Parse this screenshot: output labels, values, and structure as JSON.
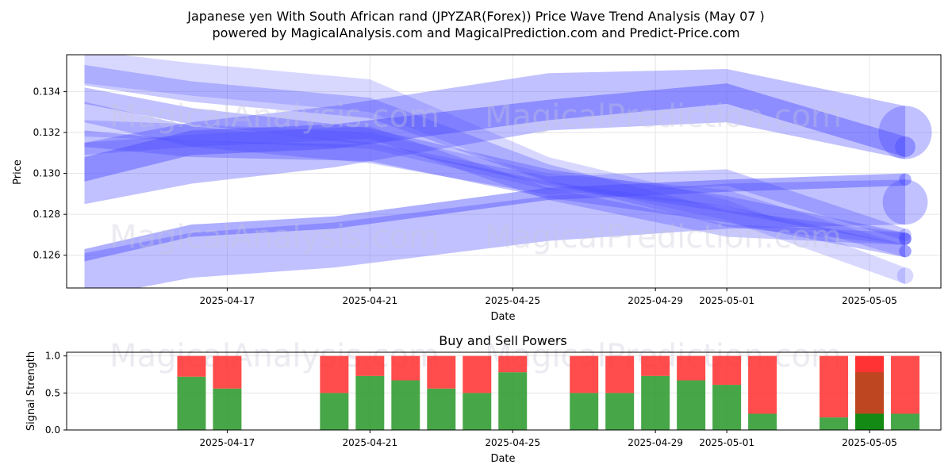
{
  "title_line1": "Japanese yen With South African rand (JPYZAR(Forex)) Price Wave Trend Analysis (May 07 )",
  "title_line2": "powered by MagicalAnalysis.com and MagicalPrediction.com and Predict-Price.com",
  "watermarks": [
    "MagicalAnalysis.com",
    "MagicalPrediction.com"
  ],
  "colors": {
    "band": "#4d4dff",
    "buy": "#2e9a2e",
    "sell": "#ff3333",
    "grid": "#e6e6e6"
  },
  "chart_data": [
    {
      "type": "area",
      "xlabel": "Date",
      "ylabel": "Price",
      "ylim": [
        0.1244,
        0.1358
      ],
      "xlim": [
        "2025-04-12T12:00",
        "2025-05-07T00:00"
      ],
      "x_ticks": [
        "2025-04-17",
        "2025-04-21",
        "2025-04-25",
        "2025-04-29",
        "2025-05-01",
        "2025-05-05"
      ],
      "y_ticks": [
        "0.126",
        "0.128",
        "0.130",
        "0.132",
        "0.134"
      ],
      "grid": true,
      "series": [
        {
          "x": [
            "2025-04-13",
            "2025-04-16",
            "2025-04-20",
            "2025-04-26",
            "2025-05-01",
            "2025-05-06"
          ],
          "center": [
            0.1302,
            0.1315,
            0.1318,
            0.1331,
            0.1339,
            0.1313
          ],
          "width": [
            0.0012,
            0.0012,
            0.0012,
            0.001,
            0.001,
            0.001
          ],
          "opacity": 0.45
        },
        {
          "x": [
            "2025-04-13",
            "2025-04-16",
            "2025-04-20",
            "2025-04-26",
            "2025-05-01",
            "2025-05-06"
          ],
          "center": [
            0.13,
            0.131,
            0.1318,
            0.1335,
            0.1338,
            0.132
          ],
          "width": [
            0.003,
            0.003,
            0.003,
            0.0028,
            0.0026,
            0.0026
          ],
          "opacity": 0.35
        },
        {
          "x": [
            "2025-04-13",
            "2025-04-16",
            "2025-04-20",
            "2025-04-26",
            "2025-05-01",
            "2025-05-06"
          ],
          "center": [
            0.126,
            0.1272,
            0.1276,
            0.129,
            0.1294,
            0.1297
          ],
          "width": [
            0.0006,
            0.0006,
            0.0006,
            0.0006,
            0.0006,
            0.0006
          ],
          "opacity": 0.45
        },
        {
          "x": [
            "2025-04-13",
            "2025-04-16",
            "2025-04-20",
            "2025-04-26",
            "2025-05-01",
            "2025-05-06"
          ],
          "center": [
            0.125,
            0.126,
            0.1265,
            0.1278,
            0.1284,
            0.1286
          ],
          "width": [
            0.0022,
            0.0022,
            0.0022,
            0.0022,
            0.0022,
            0.0022
          ],
          "opacity": 0.35
        },
        {
          "x": [
            "2025-04-13",
            "2025-04-16",
            "2025-04-21",
            "2025-04-26",
            "2025-05-01",
            "2025-05-06"
          ],
          "center": [
            0.1348,
            0.134,
            0.1332,
            0.13,
            0.1278,
            0.1268
          ],
          "width": [
            0.001,
            0.001,
            0.001,
            0.0009,
            0.0008,
            0.0006
          ],
          "opacity": 0.3
        },
        {
          "x": [
            "2025-04-13",
            "2025-04-16",
            "2025-04-21",
            "2025-04-26",
            "2025-05-01",
            "2025-05-06"
          ],
          "center": [
            0.1338,
            0.1328,
            0.1318,
            0.1298,
            0.1285,
            0.1268
          ],
          "width": [
            0.0008,
            0.0008,
            0.0008,
            0.0008,
            0.0008,
            0.0006
          ],
          "opacity": 0.35
        },
        {
          "x": [
            "2025-04-13",
            "2025-04-16",
            "2025-04-21",
            "2025-04-26",
            "2025-05-01",
            "2025-05-06"
          ],
          "center": [
            0.1352,
            0.1346,
            0.1338,
            0.1302,
            0.1282,
            0.125
          ],
          "width": [
            0.0016,
            0.0016,
            0.0016,
            0.0012,
            0.001,
            0.0008
          ],
          "opacity": 0.22
        },
        {
          "x": [
            "2025-04-13",
            "2025-04-16",
            "2025-04-21",
            "2025-04-26",
            "2025-05-01",
            "2025-05-06"
          ],
          "center": [
            0.1317,
            0.1312,
            0.131,
            0.1292,
            0.128,
            0.1262
          ],
          "width": [
            0.0008,
            0.0008,
            0.0008,
            0.0008,
            0.0008,
            0.0006
          ],
          "opacity": 0.35
        },
        {
          "x": [
            "2025-04-13",
            "2025-04-16",
            "2025-04-21",
            "2025-04-26",
            "2025-05-01",
            "2025-05-06"
          ],
          "center": [
            0.133,
            0.1318,
            0.131,
            0.1294,
            0.1298,
            0.127
          ],
          "width": [
            0.001,
            0.001,
            0.001,
            0.0009,
            0.0008,
            0.0006
          ],
          "opacity": 0.3
        },
        {
          "x": [
            "2025-04-13",
            "2025-04-16",
            "2025-04-21",
            "2025-04-26",
            "2025-05-01",
            "2025-05-06"
          ],
          "center": [
            0.1312,
            0.1316,
            0.132,
            0.129,
            0.1272,
            0.1268
          ],
          "width": [
            0.0006,
            0.0006,
            0.0006,
            0.0006,
            0.0006,
            0.0006
          ],
          "opacity": 0.3
        },
        {
          "x": [
            "2025-04-13",
            "2025-04-16",
            "2025-04-21",
            "2025-04-26",
            "2025-05-01",
            "2025-05-06"
          ],
          "center": [
            0.1322,
            0.132,
            0.1316,
            0.1296,
            0.1288,
            0.1262
          ],
          "width": [
            0.0008,
            0.0008,
            0.0008,
            0.0008,
            0.0008,
            0.0006
          ],
          "opacity": 0.25
        }
      ]
    },
    {
      "type": "bar",
      "title": "Buy and Sell Powers",
      "xlabel": "Date",
      "ylabel": "Signal Strength",
      "ylim": [
        0,
        1.05
      ],
      "y_ticks": [
        "0.0",
        "0.5",
        "1.0"
      ],
      "x_ticks": [
        "2025-04-17",
        "2025-04-21",
        "2025-04-25",
        "2025-04-29",
        "2025-05-01",
        "2025-05-05"
      ],
      "categories": [
        "2025-04-16",
        "2025-04-17",
        "2025-04-20",
        "2025-04-21",
        "2025-04-22",
        "2025-04-23",
        "2025-04-24",
        "2025-04-25",
        "2025-04-27",
        "2025-04-28",
        "2025-04-29",
        "2025-04-30",
        "2025-05-01",
        "2025-05-02",
        "2025-05-04",
        "2025-05-05",
        "2025-05-06"
      ],
      "series": [
        {
          "name": "Buy",
          "values": [
            0.72,
            0.56,
            0.5,
            0.73,
            0.67,
            0.56,
            0.5,
            0.78,
            0.5,
            0.5,
            0.73,
            0.67,
            0.61,
            0.22,
            0.17,
            0.22,
            0.22
          ]
        },
        {
          "name": "Sell",
          "values": [
            0.28,
            0.44,
            0.5,
            0.27,
            0.33,
            0.44,
            0.5,
            0.22,
            0.5,
            0.5,
            0.27,
            0.33,
            0.39,
            0.78,
            0.83,
            0.78,
            0.78
          ]
        }
      ],
      "highlight_category": "2025-05-05"
    }
  ]
}
